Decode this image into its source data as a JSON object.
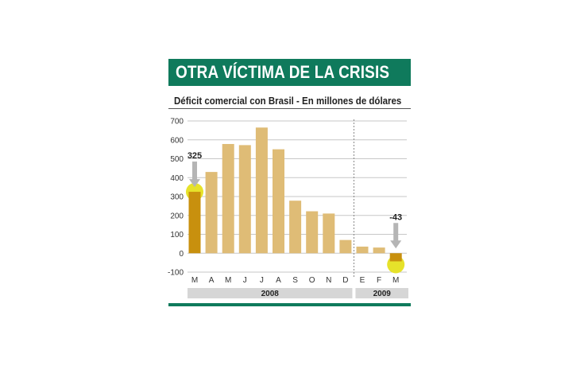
{
  "title": "OTRA VÍCTIMA DE LA CRISIS",
  "subtitle": "Déficit comercial con Brasil - En millones de dólares",
  "colors": {
    "bar": "#dfbc76",
    "highlight_bar": "#c8900e",
    "title_bg": "#0f7a5c",
    "marker": "#e6e22a",
    "arrow": "#b5b5b5",
    "year_bg": "#d6d6d6"
  },
  "chart_data": {
    "type": "bar",
    "title": "Déficit comercial con Brasil - En millones de dólares",
    "xlabel": "",
    "ylabel": "",
    "ylim": [
      -100,
      700
    ],
    "yticks": [
      700,
      600,
      500,
      400,
      300,
      200,
      100,
      0,
      -100
    ],
    "categories": [
      "M",
      "A",
      "M",
      "J",
      "J",
      "A",
      "S",
      "O",
      "N",
      "D",
      "E",
      "F",
      "M"
    ],
    "values": [
      325,
      430,
      578,
      572,
      665,
      550,
      278,
      222,
      210,
      70,
      35,
      30,
      -43
    ],
    "highlight_indices": [
      0,
      12
    ],
    "annotations": [
      {
        "index": 0,
        "label": "325"
      },
      {
        "index": 12,
        "label": "-43"
      }
    ],
    "year_groups": [
      {
        "label": "2008",
        "from": 0,
        "to": 9
      },
      {
        "label": "2009",
        "from": 10,
        "to": 12
      }
    ],
    "grid": true
  }
}
